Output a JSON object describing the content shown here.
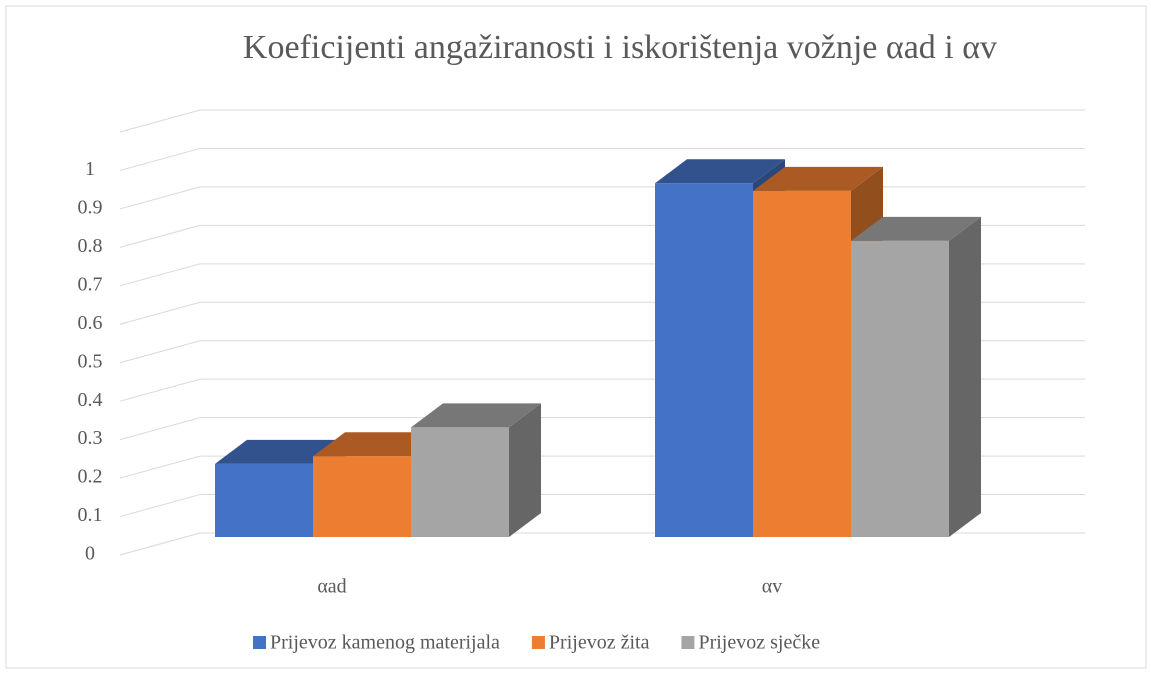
{
  "chart_data": {
    "type": "bar3d",
    "title": "Koeficijenti angažiranosti i iskorištenja vožnje αad i αv",
    "categories": [
      "αad",
      "αv"
    ],
    "series": [
      {
        "name": "Prijevoz kamenog materijala",
        "color": "#4472c4",
        "values": [
          0.19,
          0.92
        ]
      },
      {
        "name": "Prijevoz žita",
        "color": "#ed7d31",
        "values": [
          0.21,
          0.9
        ]
      },
      {
        "name": "Prijevoz sječke",
        "color": "#a5a5a5",
        "values": [
          0.285,
          0.77
        ]
      }
    ],
    "ylim": [
      0,
      1.1
    ],
    "yticks": [
      0,
      0.1,
      0.2,
      0.3,
      0.4,
      0.5,
      0.6,
      0.7,
      0.8,
      0.9,
      1
    ],
    "grid": true,
    "legend": "bottom"
  }
}
